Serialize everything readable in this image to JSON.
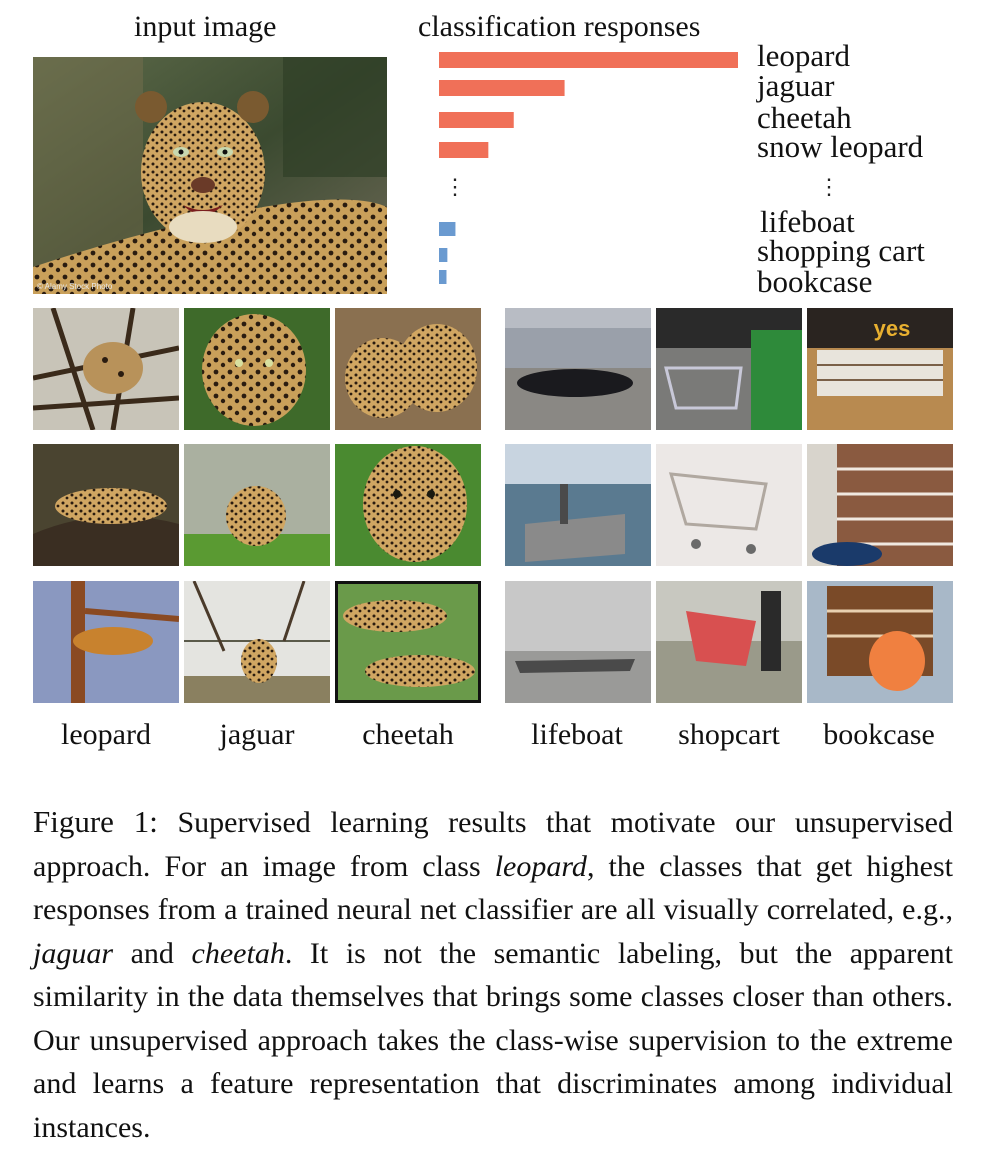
{
  "headers": {
    "input": "input image",
    "classification": "classification responses"
  },
  "main_image": {
    "watermark": "© Alamy Stock Photo"
  },
  "chart_data": {
    "type": "bar",
    "title": "classification responses",
    "orientation": "horizontal",
    "top_classes": [
      "leopard",
      "jaguar",
      "cheetah",
      "snow leopard"
    ],
    "top_values": [
      1.0,
      0.42,
      0.25,
      0.165
    ],
    "bottom_classes": [
      "lifeboat",
      "shopping cart",
      "bookcase"
    ],
    "bottom_values": [
      0.055,
      0.028,
      0.025
    ],
    "colors": {
      "top": "#f07058",
      "bottom": "#6a9ad0"
    },
    "ellipsis": "⋮"
  },
  "grid": {
    "yes_sign": "yes",
    "labels": [
      "leopard",
      "jaguar",
      "cheetah",
      "lifeboat",
      "shopcart",
      "bookcase"
    ]
  },
  "caption": {
    "figure": "Figure 1:",
    "t1": " Supervised learning results that motivate our unsupervised approach. For an image from class ",
    "i1": "leopard",
    "t2": ", the classes that get highest responses from a trained neural net classifier are all visually correlated, e.g., ",
    "i2": "jaguar",
    "t3": " and ",
    "i3": "cheetah",
    "t4": ". It is not the semantic labeling, but the apparent similarity in the data themselves that brings some classes closer than others. Our unsupervised approach takes the class-wise supervision to the extreme and learns a feature representation that discriminates among individual instances."
  }
}
